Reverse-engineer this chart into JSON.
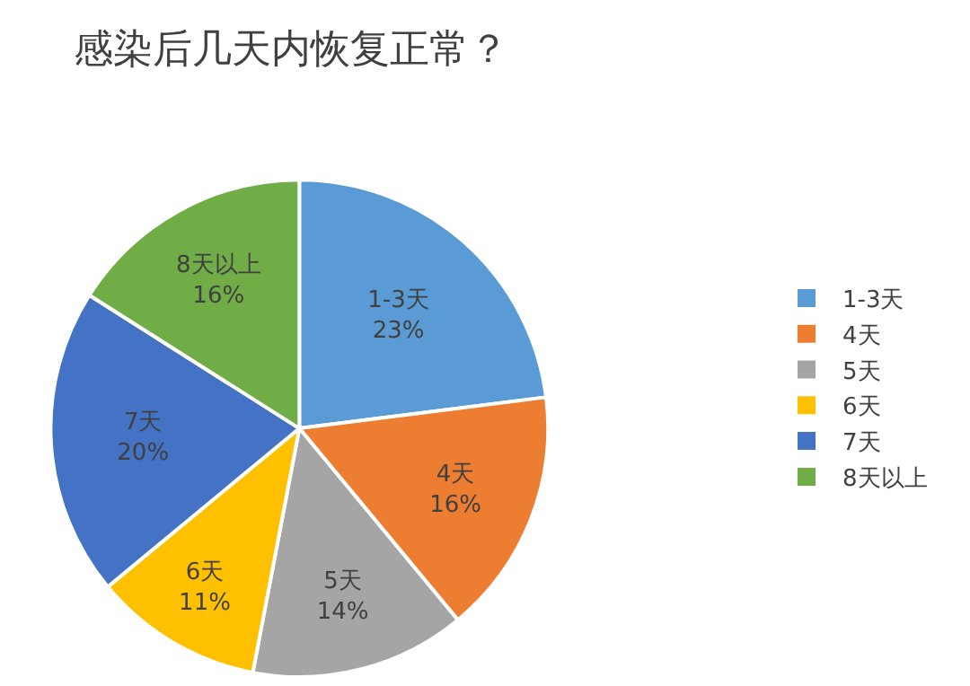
{
  "chart_data": {
    "type": "pie",
    "title": "感染后几天内恢复正常？",
    "categories": [
      "1-3天",
      "4天",
      "5天",
      "6天",
      "7天",
      "8天以上"
    ],
    "values": [
      23,
      16,
      14,
      11,
      20,
      16
    ],
    "value_labels": [
      "23%",
      "16%",
      "14%",
      "11%",
      "20%",
      "16%"
    ],
    "colors": [
      "#5b9bd5",
      "#ed7d31",
      "#a5a5a5",
      "#ffc000",
      "#4472c4",
      "#70ad47"
    ],
    "legend": "right"
  }
}
